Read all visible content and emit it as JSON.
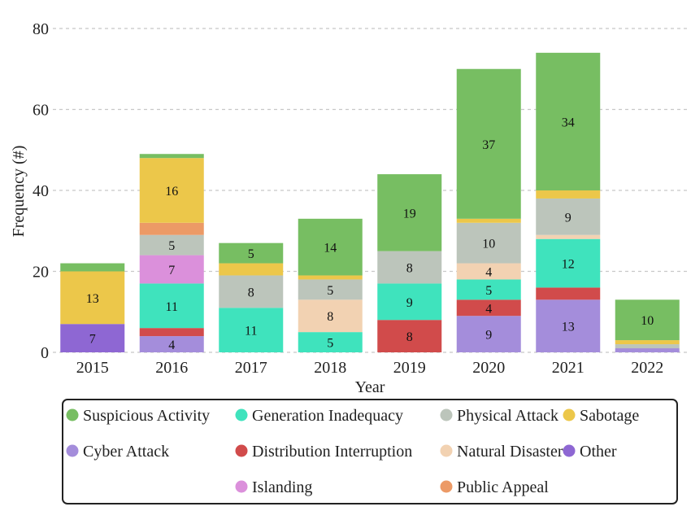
{
  "chart_data": {
    "type": "bar",
    "stacked": true,
    "title": "",
    "xlabel": "Year",
    "ylabel": "Frequency (#)",
    "ylim": [
      0,
      80
    ],
    "yticks": [
      0,
      20,
      40,
      60,
      80
    ],
    "grid": "horizontal dashed",
    "legend_position": "bottom",
    "categories": [
      "2015",
      "2016",
      "2017",
      "2018",
      "2019",
      "2020",
      "2021",
      "2022"
    ],
    "series": [
      {
        "name": "Other",
        "color": "#8e67d3",
        "values": [
          7,
          0,
          0,
          0,
          0,
          0,
          0,
          0
        ]
      },
      {
        "name": "Cyber Attack",
        "color": "#a48ddb",
        "values": [
          0,
          4,
          0,
          0,
          0,
          9,
          13,
          1
        ]
      },
      {
        "name": "Distribution Interruption",
        "color": "#d14b4b",
        "values": [
          0,
          2,
          0,
          0,
          8,
          4,
          3,
          0
        ]
      },
      {
        "name": "Generation Inadequacy",
        "color": "#3fe3bd",
        "values": [
          0,
          11,
          11,
          5,
          9,
          5,
          12,
          0
        ]
      },
      {
        "name": "Islanding",
        "color": "#db90db",
        "values": [
          0,
          7,
          0,
          0,
          0,
          0,
          0,
          0
        ]
      },
      {
        "name": "Natural Disaster",
        "color": "#f2d2b2",
        "values": [
          0,
          0,
          0,
          8,
          0,
          4,
          1,
          0
        ]
      },
      {
        "name": "Physical Attack",
        "color": "#bcc5bb",
        "values": [
          0,
          5,
          8,
          5,
          8,
          10,
          9,
          1
        ]
      },
      {
        "name": "Public Appeal",
        "color": "#ec9a66",
        "values": [
          0,
          3,
          0,
          0,
          0,
          0,
          0,
          0
        ]
      },
      {
        "name": "Sabotage",
        "color": "#ecc74a",
        "values": [
          13,
          16,
          3,
          1,
          0,
          1,
          2,
          1
        ]
      },
      {
        "name": "Suspicious Activity",
        "color": "#77be62",
        "values": [
          2,
          1,
          5,
          14,
          19,
          37,
          34,
          10
        ]
      }
    ],
    "data_labels": [
      {
        "category": "2015",
        "series": "Other",
        "text": "7"
      },
      {
        "category": "2015",
        "series": "Sabotage",
        "text": "13"
      },
      {
        "category": "2016",
        "series": "Cyber Attack",
        "text": "4"
      },
      {
        "category": "2016",
        "series": "Generation Inadequacy",
        "text": "11"
      },
      {
        "category": "2016",
        "series": "Islanding",
        "text": "7"
      },
      {
        "category": "2016",
        "series": "Physical Attack",
        "text": "5"
      },
      {
        "category": "2016",
        "series": "Sabotage",
        "text": "16"
      },
      {
        "category": "2017",
        "series": "Generation Inadequacy",
        "text": "11"
      },
      {
        "category": "2017",
        "series": "Physical Attack",
        "text": "8"
      },
      {
        "category": "2017",
        "series": "Suspicious Activity",
        "text": "5"
      },
      {
        "category": "2018",
        "series": "Generation Inadequacy",
        "text": "5"
      },
      {
        "category": "2018",
        "series": "Natural Disaster",
        "text": "8"
      },
      {
        "category": "2018",
        "series": "Physical Attack",
        "text": "5"
      },
      {
        "category": "2018",
        "series": "Suspicious Activity",
        "text": "14"
      },
      {
        "category": "2019",
        "series": "Distribution Interruption",
        "text": "8"
      },
      {
        "category": "2019",
        "series": "Generation Inadequacy",
        "text": "9"
      },
      {
        "category": "2019",
        "series": "Physical Attack",
        "text": "8"
      },
      {
        "category": "2019",
        "series": "Suspicious Activity",
        "text": "19"
      },
      {
        "category": "2020",
        "series": "Cyber Attack",
        "text": "9"
      },
      {
        "category": "2020",
        "series": "Distribution Interruption",
        "text": "4"
      },
      {
        "category": "2020",
        "series": "Generation Inadequacy",
        "text": "5"
      },
      {
        "category": "2020",
        "series": "Natural Disaster",
        "text": "4"
      },
      {
        "category": "2020",
        "series": "Physical Attack",
        "text": "10"
      },
      {
        "category": "2020",
        "series": "Suspicious Activity",
        "text": "37"
      },
      {
        "category": "2021",
        "series": "Cyber Attack",
        "text": "13"
      },
      {
        "category": "2021",
        "series": "Generation Inadequacy",
        "text": "12"
      },
      {
        "category": "2021",
        "series": "Physical Attack",
        "text": "9"
      },
      {
        "category": "2021",
        "series": "Suspicious Activity",
        "text": "34"
      },
      {
        "category": "2022",
        "series": "Suspicious Activity",
        "text": "10"
      }
    ],
    "legend": [
      "Suspicious Activity",
      "Generation Inadequacy",
      "Physical Attack",
      "Sabotage",
      "Cyber Attack",
      "Distribution Interruption",
      "Natural Disaster",
      "Other",
      "Islanding",
      "Public Appeal"
    ]
  }
}
